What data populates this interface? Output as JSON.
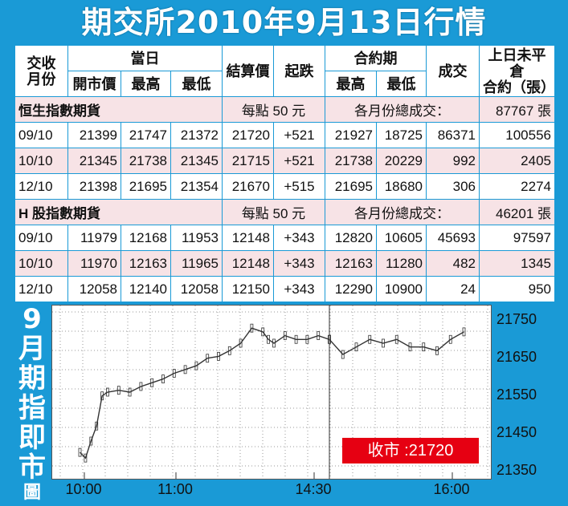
{
  "title": "期交所2010年9月13日行情",
  "table": {
    "headers": {
      "contract_month": "交收\n月份",
      "day_group": "當日",
      "open": "開市價",
      "high": "最高",
      "low": "最低",
      "settle": "結算價",
      "change": "起跌",
      "contract_group": "合約期",
      "c_high": "最高",
      "c_low": "最低",
      "volume": "成交",
      "oi": "上日未平倉\n合約（張）"
    },
    "sections": [
      {
        "name": "恒生指數期貨",
        "point_value": "每點 50 元",
        "total_label": "各月份總成交：",
        "total": "87767 張",
        "rows": [
          {
            "month": "09/10",
            "open": "21399",
            "high": "21747",
            "low": "21372",
            "settle": "21720",
            "change": "+521",
            "c_high": "21927",
            "c_low": "18725",
            "volume": "86371",
            "oi": "100556"
          },
          {
            "month": "10/10",
            "open": "21345",
            "high": "21738",
            "low": "21345",
            "settle": "21715",
            "change": "+521",
            "c_high": "21738",
            "c_low": "20229",
            "volume": "992",
            "oi": "2405"
          },
          {
            "month": "12/10",
            "open": "21398",
            "high": "21695",
            "low": "21354",
            "settle": "21670",
            "change": "+515",
            "c_high": "21695",
            "c_low": "18680",
            "volume": "306",
            "oi": "2274"
          }
        ]
      },
      {
        "name": "H 股指數期貨",
        "point_value": "每點 50 元",
        "total_label": "各月份總成交：",
        "total": "46201 張",
        "rows": [
          {
            "month": "09/10",
            "open": "11979",
            "high": "12168",
            "low": "11953",
            "settle": "12148",
            "change": "+343",
            "c_high": "12820",
            "c_low": "10605",
            "volume": "45693",
            "oi": "97597"
          },
          {
            "month": "10/10",
            "open": "11970",
            "high": "12163",
            "low": "11965",
            "settle": "12148",
            "change": "+343",
            "c_high": "12163",
            "c_low": "11280",
            "volume": "482",
            "oi": "1345"
          },
          {
            "month": "12/10",
            "open": "12058",
            "high": "12140",
            "low": "12058",
            "settle": "12150",
            "change": "+343",
            "c_high": "12290",
            "c_low": "10900",
            "volume": "24",
            "oi": "950"
          }
        ]
      }
    ]
  },
  "side_title": [
    "9",
    "月",
    "期",
    "指",
    "即",
    "市",
    "圖"
  ],
  "close_label": "收市 :21720",
  "chart_data": {
    "type": "line",
    "title": "9月期指即市圖",
    "xlabel": "",
    "ylabel": "",
    "ylim": [
      21330,
      21790
    ],
    "y_ticks": [
      21750,
      21650,
      21550,
      21450,
      21350
    ],
    "x_ticks": [
      "10:00",
      "11:00",
      "14:30",
      "16:00"
    ],
    "series": [
      {
        "name": "",
        "x": [
          "09:45",
          "09:50",
          "09:55",
          "10:00",
          "10:05",
          "10:10",
          "10:20",
          "10:30",
          "10:40",
          "10:50",
          "11:00",
          "11:10",
          "11:20",
          "11:30",
          "11:40",
          "11:50",
          "12:00",
          "12:10",
          "12:20",
          "12:30",
          "12:35",
          "12:40",
          "12:50",
          "13:00",
          "13:10",
          "13:20",
          "13:30",
          "14:30",
          "14:40",
          "14:50",
          "15:00",
          "15:10",
          "15:20",
          "15:30",
          "15:40",
          "15:50",
          "16:00",
          "16:10"
        ],
        "values": [
          21400,
          21385,
          21430,
          21470,
          21550,
          21560,
          21565,
          21560,
          21575,
          21585,
          21595,
          21610,
          21620,
          21630,
          21650,
          21655,
          21670,
          21690,
          21730,
          21720,
          21700,
          21690,
          21710,
          21700,
          21700,
          21710,
          21700,
          21700,
          21660,
          21680,
          21700,
          21690,
          21700,
          21680,
          21680,
          21670,
          21700,
          21720
        ]
      }
    ],
    "annotation": "收市 :21720",
    "grid": true,
    "colors": {
      "line": "#333333",
      "grid": "#999999",
      "close_box": "#e60012",
      "background": "#1a9ad6"
    }
  }
}
